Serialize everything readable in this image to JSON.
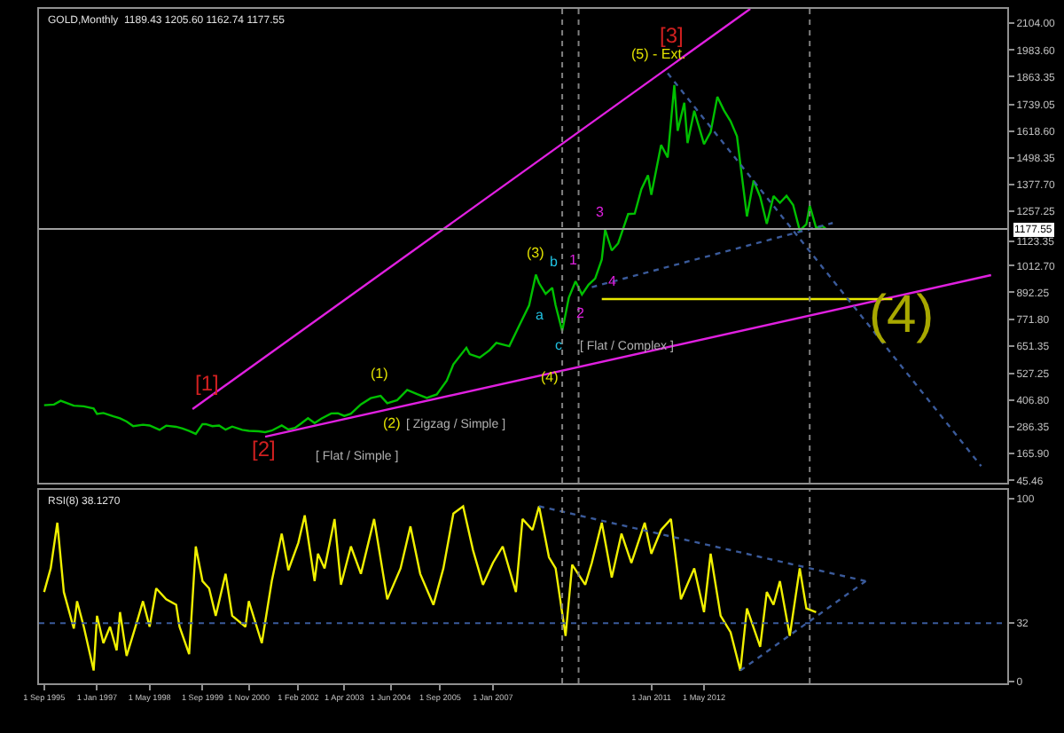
{
  "chart_data": [
    {
      "type": "line",
      "title": "GOLD,Monthly  1189.43 1205.60 1162.74 1177.55",
      "tick_labels": "y",
      "xlim": [
        "1995-07-16",
        "2019-12-28"
      ],
      "ylim": [
        35,
        2169
      ],
      "yticks": [
        {
          "value": 45.46,
          "label": "45.46"
        },
        {
          "value": 165.9,
          "label": "165.90"
        },
        {
          "value": 286.35,
          "label": "286.35"
        },
        {
          "value": 406.8,
          "label": "406.80"
        },
        {
          "value": 527.25,
          "label": "527.25"
        },
        {
          "value": 651.35,
          "label": "651.35"
        },
        {
          "value": 771.8,
          "label": "771.80"
        },
        {
          "value": 892.25,
          "label": "892.25"
        },
        {
          "value": 1012.7,
          "label": "1012.70"
        },
        {
          "value": 1123.35,
          "label": "1123.35"
        },
        {
          "value": 1257.25,
          "label": "1257.25"
        },
        {
          "value": 1377.7,
          "label": "1377.70"
        },
        {
          "value": 1498.35,
          "label": "1498.35"
        },
        {
          "value": 1618.6,
          "label": "1618.60"
        },
        {
          "value": 1739.05,
          "label": "1739.05"
        },
        {
          "value": 1863.35,
          "label": "1863.35"
        },
        {
          "value": 1983.6,
          "label": "1983.60"
        },
        {
          "value": 2104.0,
          "label": "2104.00"
        }
      ],
      "series": [
        {
          "color": "#00c000",
          "x": [
            "1995-09",
            "1995-12",
            "1996-02",
            "1996-06",
            "1996-09",
            "1996-12",
            "1997-01",
            "1997-03",
            "1997-06",
            "1997-08",
            "1997-10",
            "1997-12",
            "1998-03",
            "1998-05",
            "1998-08",
            "1998-10",
            "1999-01",
            "1999-03",
            "1999-05",
            "1999-07",
            "1999-09",
            "1999-10",
            "1999-12",
            "2000-02",
            "2000-04",
            "2000-06",
            "2000-09",
            "2000-11",
            "2001-02",
            "2001-04",
            "2001-06",
            "2001-09",
            "2001-11",
            "2002-01",
            "2002-03",
            "2002-05",
            "2002-07",
            "2002-09",
            "2002-12",
            "2003-02",
            "2003-04",
            "2003-06",
            "2003-09",
            "2003-12",
            "2004-03",
            "2004-05",
            "2004-08",
            "2004-11",
            "2005-02",
            "2005-05",
            "2005-08",
            "2005-11",
            "2006-01",
            "2006-05",
            "2006-06",
            "2006-09",
            "2006-12",
            "2007-02",
            "2007-06",
            "2007-09",
            "2007-12",
            "2008-02",
            "2008-03",
            "2008-05",
            "2008-07",
            "2008-08",
            "2008-10",
            "2008-12",
            "2009-02",
            "2009-04",
            "2009-06",
            "2009-08",
            "2009-10",
            "2009-11",
            "2010-01",
            "2010-03",
            "2010-06",
            "2010-08",
            "2010-10",
            "2010-12",
            "2011-01",
            "2011-04",
            "2011-06",
            "2011-08",
            "2011-09",
            "2011-11",
            "2011-12",
            "2012-02",
            "2012-05",
            "2012-07",
            "2012-09",
            "2012-11",
            "2013-01",
            "2013-03",
            "2013-04",
            "2013-06",
            "2013-08",
            "2013-10",
            "2013-12",
            "2014-02",
            "2014-04",
            "2014-06",
            "2014-08",
            "2014-10",
            "2014-12",
            "2015-01",
            "2015-03",
            "2015-05",
            "2015-06"
          ],
          "values": [
            384,
            387,
            404,
            382,
            379,
            369,
            345,
            349,
            334,
            325,
            311,
            290,
            296,
            293,
            273,
            292,
            287,
            279,
            268,
            255,
            299,
            299,
            290,
            293,
            274,
            288,
            273,
            269,
            267,
            263,
            270,
            293,
            275,
            282,
            303,
            326,
            304,
            324,
            347,
            348,
            336,
            346,
            388,
            416,
            426,
            393,
            407,
            453,
            434,
            417,
            433,
            495,
            568,
            643,
            614,
            599,
            632,
            665,
            650,
            743,
            834,
            972,
            934,
            886,
            913,
            834,
            718,
            869,
            942,
            883,
            927,
            955,
            1040,
            1175,
            1081,
            1113,
            1245,
            1247,
            1357,
            1420,
            1332,
            1556,
            1500,
            1826,
            1620,
            1746,
            1565,
            1710,
            1560,
            1614,
            1773,
            1712,
            1663,
            1595,
            1472,
            1234,
            1396,
            1323,
            1201,
            1326,
            1296,
            1327,
            1286,
            1171,
            1199,
            1283,
            1183,
            1190,
            1177.55
          ]
        },
        {
          "color": "#e020e0",
          "x": [
            "1999-06",
            "2013-07"
          ],
          "values": [
            367,
            2169
          ]
        },
        {
          "color": "#e020e0",
          "x": [
            "2001-04",
            "2019-08"
          ],
          "values": [
            242,
            970
          ]
        },
        {
          "color": "#e8e800",
          "x": [
            "2009-10",
            "2017-02"
          ],
          "values": [
            862,
            862
          ]
        },
        {
          "color": "#3a5a9a",
          "line_style": "dotted",
          "x": [
            "2011-06",
            "2019-05"
          ],
          "values": [
            1879,
            110
          ]
        },
        {
          "color": "#3a5a9a",
          "line_style": "dotted",
          "x": [
            "2009-07",
            "2015-08"
          ],
          "values": [
            916,
            1205
          ]
        }
      ],
      "ref_lines": [
        {
          "axis": "y",
          "value": 1177.55,
          "label": "1177.55",
          "color": "#a0a0a0"
        },
        {
          "axis": "x",
          "value": "2008-10",
          "color": "#808080",
          "line_style": "dotted"
        },
        {
          "axis": "x",
          "value": "2009-03",
          "color": "#808080",
          "line_style": "dotted"
        },
        {
          "axis": "x",
          "value": "2015-01",
          "color": "#808080",
          "line_style": "dotted"
        }
      ],
      "annotations": [
        "[1]",
        "[2]",
        "[3]",
        "[ Flat / Simple ]",
        "(1)",
        "(2)",
        "[ Zigzag / Simple ]",
        "(3)",
        "a",
        "b",
        "c",
        "(4)",
        "[ Flat / Complex ]",
        "1",
        "2",
        "3",
        "4",
        "(5) - Ext.",
        "(4)"
      ]
    },
    {
      "type": "line",
      "title": "RSI(8) 38.1270",
      "xlim": [
        "1995-07-16",
        "2019-12-28"
      ],
      "xticks": [
        {
          "value": "1995-09",
          "label": "1 Sep 1995"
        },
        {
          "value": "1997-01",
          "label": "1 Jan 1997"
        },
        {
          "value": "1998-05",
          "label": "1 May 1998"
        },
        {
          "value": "1999-09",
          "label": "1 Sep 1999"
        },
        {
          "value": "2000-11",
          "label": "1 Nov 2000"
        },
        {
          "value": "2002-02",
          "label": "1 Feb 2002"
        },
        {
          "value": "2003-04",
          "label": "1 Apr 2003"
        },
        {
          "value": "2004-06",
          "label": "1 Jun 2004"
        },
        {
          "value": "2005-09",
          "label": "1 Sep 2005"
        },
        {
          "value": "2007-01",
          "label": "1 Jan 2007"
        },
        {
          "value": "2011-01",
          "label": "1 Jan 2011"
        },
        {
          "value": "2012-05",
          "label": "1 May 2012"
        }
      ],
      "ylim": [
        -1,
        105
      ],
      "yticks": [
        0,
        32,
        100
      ],
      "series": [
        {
          "color": "#f0f000",
          "x": [
            "1995-09",
            "1995-11",
            "1996-01",
            "1996-03",
            "1996-06",
            "1996-07",
            "1996-09",
            "1996-12",
            "1997-01",
            "1997-03",
            "1997-05",
            "1997-07",
            "1997-08",
            "1997-10",
            "1998-01",
            "1998-03",
            "1998-05",
            "1998-07",
            "1998-10",
            "1999-01",
            "1999-02",
            "1999-05",
            "1999-07",
            "1999-09",
            "1999-11",
            "2000-01",
            "2000-04",
            "2000-06",
            "2000-10",
            "2000-11",
            "2001-03",
            "2001-06",
            "2001-09",
            "2001-11",
            "2002-02",
            "2002-04",
            "2002-07",
            "2002-08",
            "2002-10",
            "2003-01",
            "2003-03",
            "2003-06",
            "2003-09",
            "2004-01",
            "2004-05",
            "2004-09",
            "2004-12",
            "2005-03",
            "2005-07",
            "2005-10",
            "2006-01",
            "2006-04",
            "2006-07",
            "2006-10",
            "2007-01",
            "2007-04",
            "2007-08",
            "2007-10",
            "2008-01",
            "2008-03",
            "2008-06",
            "2008-08",
            "2008-11",
            "2009-01",
            "2009-05",
            "2009-07",
            "2009-10",
            "2010-01",
            "2010-04",
            "2010-07",
            "2010-11",
            "2011-01",
            "2011-04",
            "2011-07",
            "2011-10",
            "2012-02",
            "2012-05",
            "2012-07",
            "2012-10",
            "2013-01",
            "2013-04",
            "2013-06",
            "2013-10",
            "2013-12",
            "2014-02",
            "2014-04",
            "2014-07",
            "2014-10",
            "2014-12",
            "2015-03"
          ],
          "values": [
            49,
            62,
            87,
            49,
            29,
            44,
            30,
            6,
            36,
            21,
            30,
            17,
            38,
            14,
            32,
            44,
            30,
            51,
            45,
            42,
            30,
            15,
            74,
            55,
            51,
            36,
            59,
            36,
            30,
            44,
            21,
            55,
            81,
            61,
            76,
            91,
            55,
            70,
            62,
            89,
            53,
            74,
            59,
            89,
            45,
            62,
            85,
            59,
            42,
            62,
            92,
            96,
            72,
            53,
            65,
            74,
            49,
            89,
            83,
            96,
            68,
            62,
            25,
            64,
            53,
            65,
            87,
            57,
            81,
            65,
            87,
            70,
            83,
            89,
            45,
            62,
            38,
            70,
            36,
            27,
            6,
            40,
            19,
            49,
            42,
            55,
            25,
            62,
            40,
            38
          ]
        },
        {
          "color": "#3a5a9a",
          "line_style": "dotted",
          "x": [
            "2008-03",
            "2016-06"
          ],
          "values": [
            96,
            55
          ]
        },
        {
          "color": "#3a5a9a",
          "line_style": "dotted",
          "x": [
            "2013-04",
            "2016-06"
          ],
          "values": [
            6,
            55
          ]
        }
      ],
      "ref_lines": [
        {
          "axis": "y",
          "value": 32,
          "color": "#3a5a9a",
          "line_style": "dotted"
        },
        {
          "axis": "x",
          "value": "2008-10",
          "color": "#808080",
          "line_style": "dotted"
        },
        {
          "axis": "x",
          "value": "2009-03",
          "color": "#808080",
          "line_style": "dotted"
        },
        {
          "axis": "x",
          "value": "2015-01",
          "color": "#808080",
          "line_style": "dotted"
        }
      ]
    }
  ]
}
